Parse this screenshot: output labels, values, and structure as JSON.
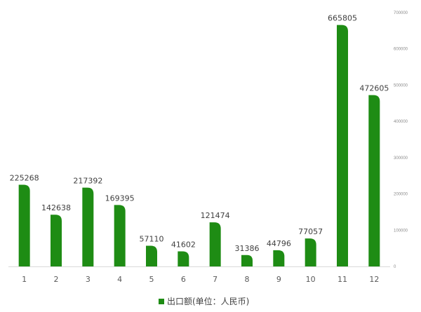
{
  "chart_data": {
    "type": "bar",
    "categories": [
      "1",
      "2",
      "3",
      "4",
      "5",
      "6",
      "7",
      "8",
      "9",
      "10",
      "11",
      "12"
    ],
    "series": [
      {
        "name": "出口额(单位：人民币)",
        "values": [
          225268,
          142638,
          217392,
          169395,
          57110,
          41602,
          121474,
          31386,
          44796,
          77057,
          665805,
          472605
        ],
        "color": "#1e8c14"
      }
    ],
    "y_axis_position": "right",
    "ylim": [
      0,
      700000
    ],
    "y_ticks": [
      "0",
      "100000",
      "200000",
      "300000",
      "400000",
      "500000",
      "600000",
      "700000"
    ],
    "grid": false,
    "legend_position": "bottom",
    "title": "",
    "xlabel": "",
    "ylabel": ""
  }
}
